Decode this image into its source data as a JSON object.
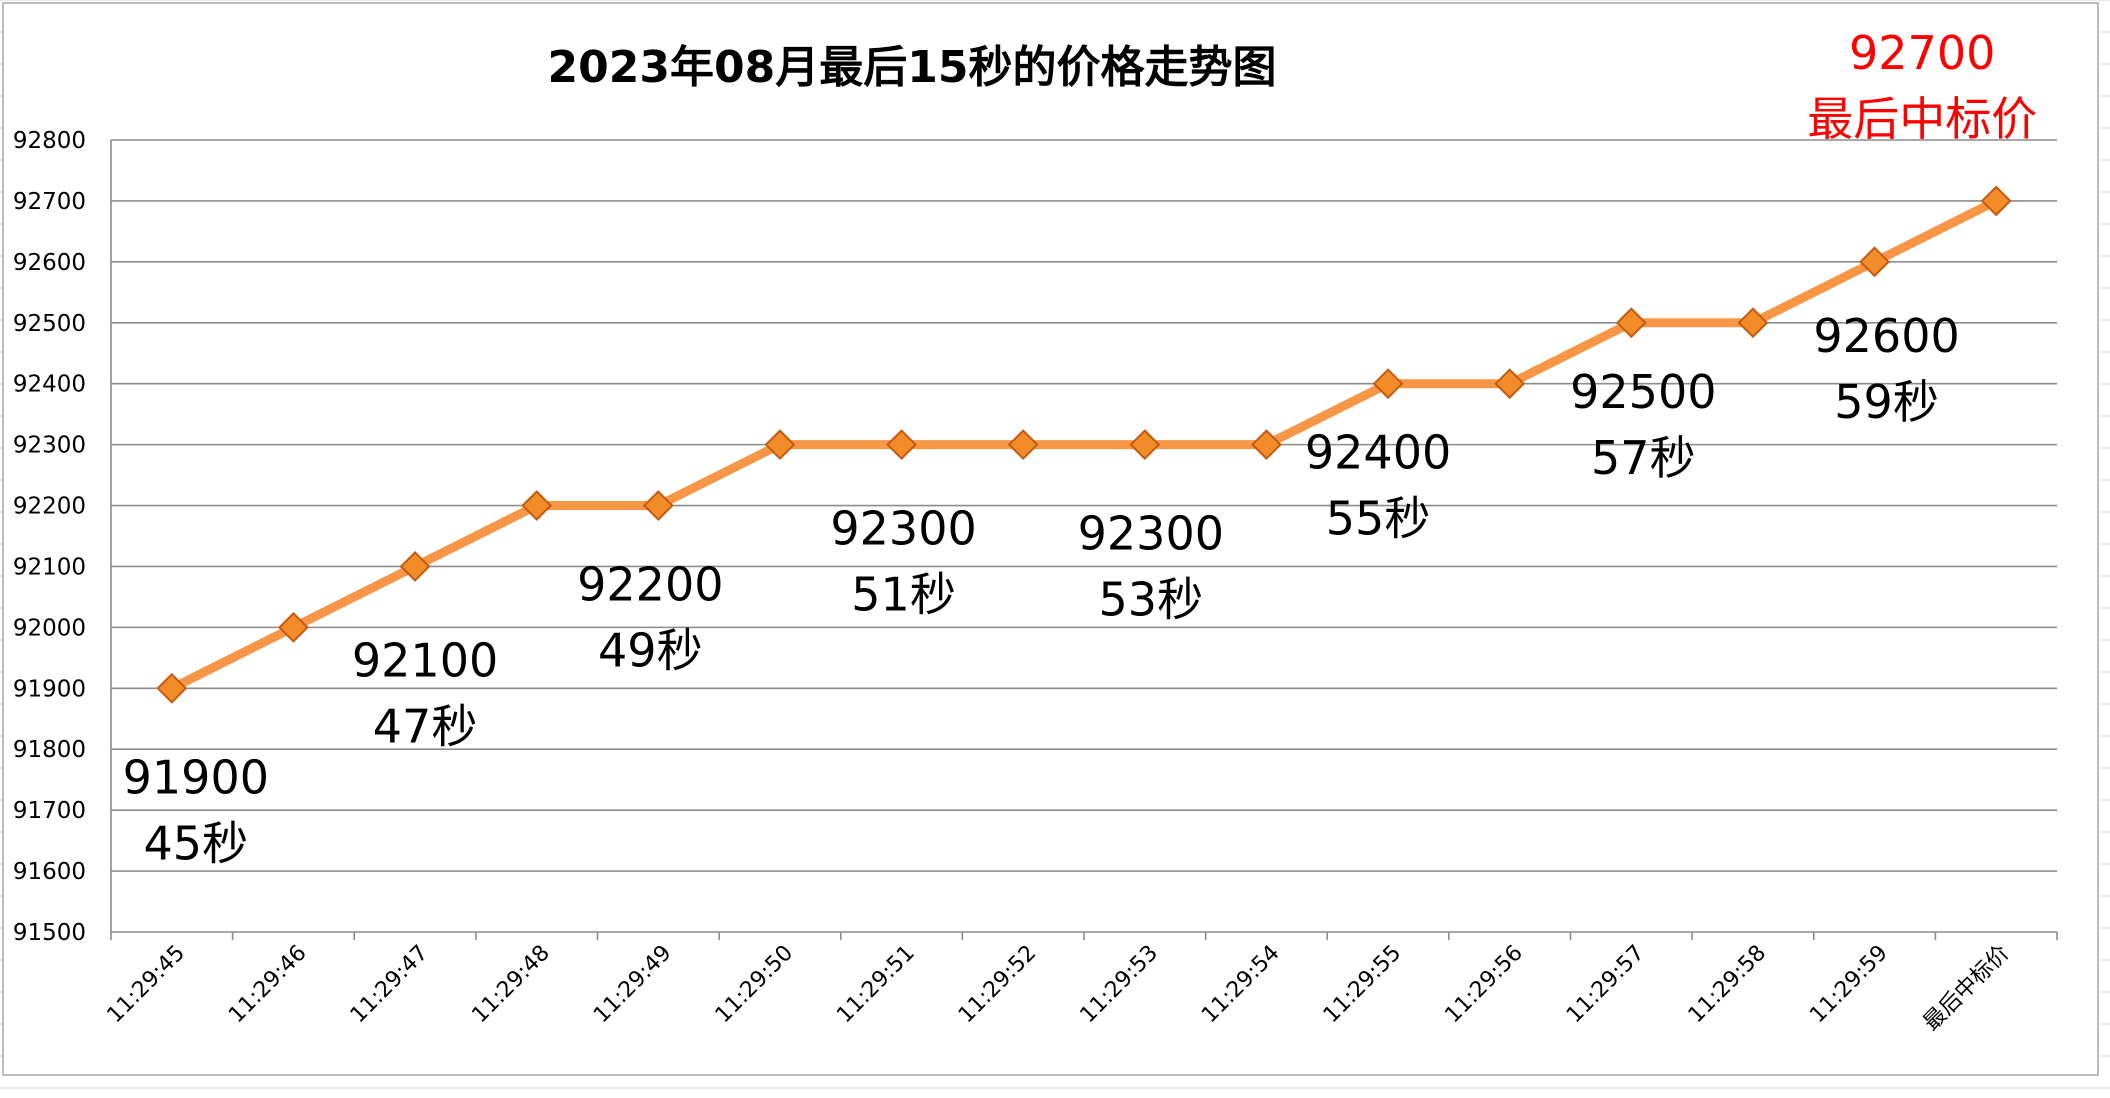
{
  "chart_data": {
    "type": "line",
    "title": "2023年08月最后15秒的价格走势图",
    "categories": [
      "11:29:45",
      "11:29:46",
      "11:29:47",
      "11:29:48",
      "11:29:49",
      "11:29:50",
      "11:29:51",
      "11:29:52",
      "11:29:53",
      "11:29:54",
      "11:29:55",
      "11:29:56",
      "11:29:57",
      "11:29:58",
      "11:29:59",
      "最后中标价"
    ],
    "series": [
      {
        "values": [
          91900,
          92000,
          92100,
          92200,
          92200,
          92300,
          92300,
          92300,
          92300,
          92300,
          92400,
          92400,
          92500,
          92500,
          92600,
          92700
        ]
      }
    ],
    "ylim": [
      91500,
      92800
    ],
    "yticks": [
      91500,
      91600,
      91700,
      91800,
      91900,
      92000,
      92100,
      92200,
      92300,
      92400,
      92500,
      92600,
      92700,
      92800
    ],
    "grid": true,
    "legend": "none",
    "annotations": [
      {
        "index": 0,
        "price": "91900",
        "label": "45秒"
      },
      {
        "index": 2,
        "price": "92100",
        "label": "47秒"
      },
      {
        "index": 4,
        "price": "92200",
        "label": "49秒"
      },
      {
        "index": 6,
        "price": "92300",
        "label": "51秒"
      },
      {
        "index": 8,
        "price": "92300",
        "label": "53秒"
      },
      {
        "index": 10,
        "price": "92400",
        "label": "55秒"
      },
      {
        "index": 12,
        "price": "92500",
        "label": "57秒"
      },
      {
        "index": 14,
        "price": "92600",
        "label": "59秒"
      },
      {
        "index": 15,
        "price": "92700",
        "label": "最后中标价",
        "highlight": true
      }
    ],
    "colors": {
      "line": "#f79646",
      "marker": "#f28c28",
      "marker_edge": "#c55a11",
      "highlight_text": "#ff0000",
      "grid": "#8c8c8c",
      "sheet_grid": "#d9d9d9"
    }
  }
}
